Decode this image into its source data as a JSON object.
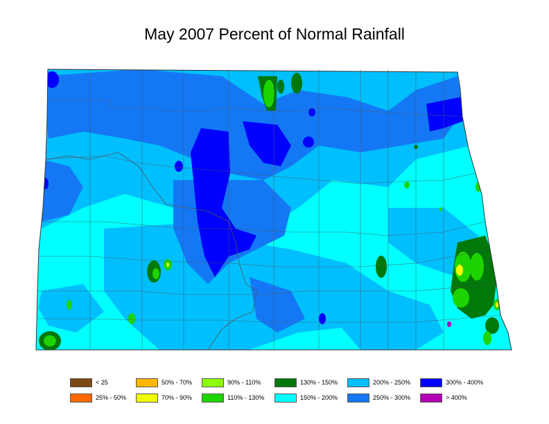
{
  "title": "May 2007 Percent of Normal Rainfall",
  "legend": [
    {
      "label": "< 25",
      "color": "#7b4a12"
    },
    {
      "label": "25% - 50%",
      "color": "#ff6a00"
    },
    {
      "label": "50% - 70%",
      "color": "#ffb800"
    },
    {
      "label": "70% - 90%",
      "color": "#f0ff00"
    },
    {
      "label": "90% - 110%",
      "color": "#8cff00"
    },
    {
      "label": "110% - 130%",
      "color": "#1ed400"
    },
    {
      "label": "130% - 150%",
      "color": "#00780a"
    },
    {
      "label": "150% - 200%",
      "color": "#00ffff"
    },
    {
      "label": "200% - 250%",
      "color": "#00bfff"
    },
    {
      "label": "250% - 300%",
      "color": "#1478f5"
    },
    {
      "label": "300% - 400%",
      "color": "#0000ff"
    },
    {
      "label": "> 400%",
      "color": "#b400b4"
    }
  ]
}
